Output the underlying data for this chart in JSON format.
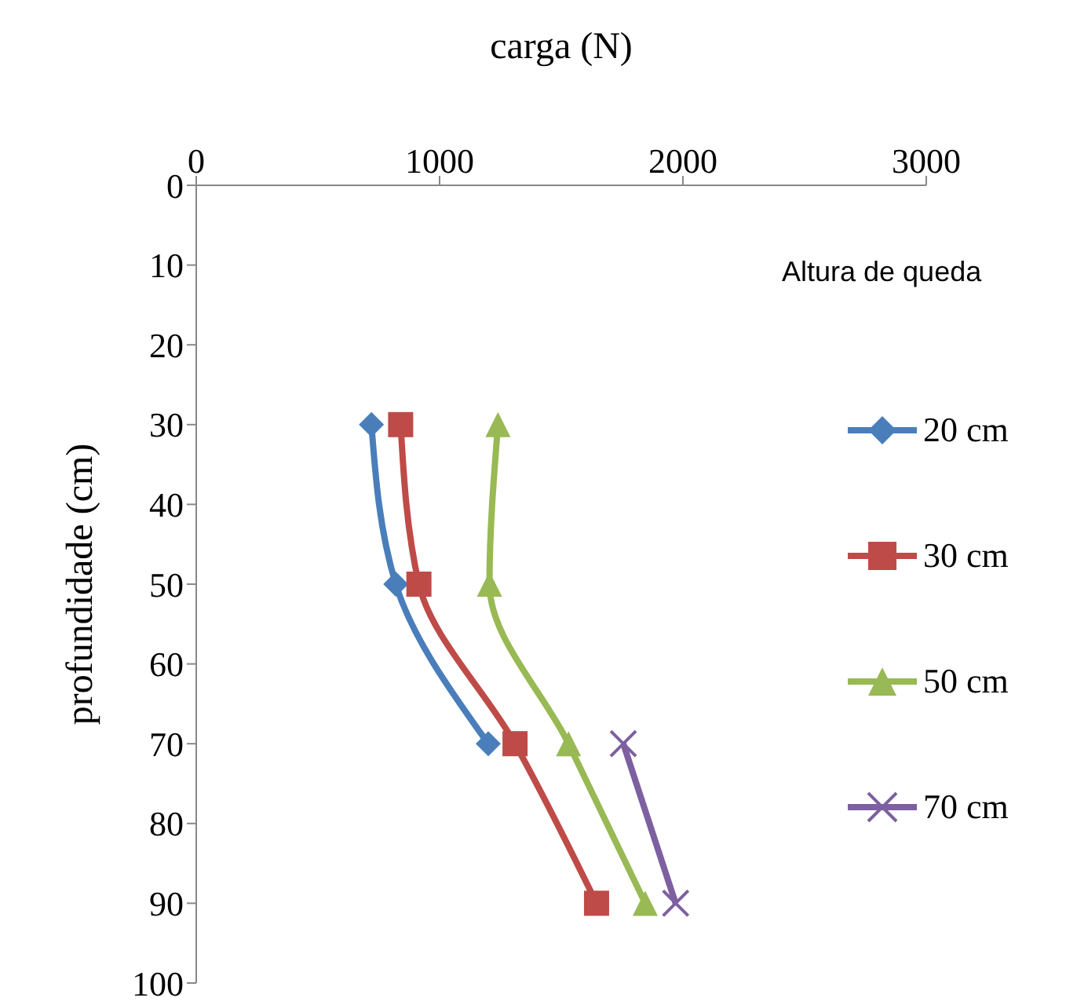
{
  "chart_data": {
    "type": "line",
    "xlabel": "carga (N)",
    "ylabel": "profundidade (cm)",
    "legend_title": "Altura de queda",
    "xlim": [
      0,
      3000
    ],
    "xticks": [
      0,
      1000,
      2000,
      3000
    ],
    "ylim": [
      100,
      0
    ],
    "yticks": [
      0,
      10,
      20,
      30,
      40,
      50,
      60,
      70,
      80,
      90,
      100
    ],
    "grid": false,
    "legend": "right",
    "series": [
      {
        "name": "20 cm",
        "color": "#4a7ebb",
        "marker": "diamond",
        "x": [
          720,
          820,
          1200
        ],
        "values": [
          30,
          50,
          70
        ]
      },
      {
        "name": "30 cm",
        "color": "#be4b48",
        "marker": "square",
        "x": [
          840,
          915,
          1310,
          1645
        ],
        "values": [
          30,
          50,
          70,
          90
        ]
      },
      {
        "name": "50 cm",
        "color": "#98b954",
        "marker": "triangle",
        "x": [
          1240,
          1205,
          1530,
          1845
        ],
        "values": [
          30,
          50,
          70,
          90
        ]
      },
      {
        "name": "70 cm",
        "color": "#7d60a0",
        "marker": "cross",
        "x": [
          1755,
          1970
        ],
        "values": [
          70,
          90
        ]
      }
    ]
  }
}
